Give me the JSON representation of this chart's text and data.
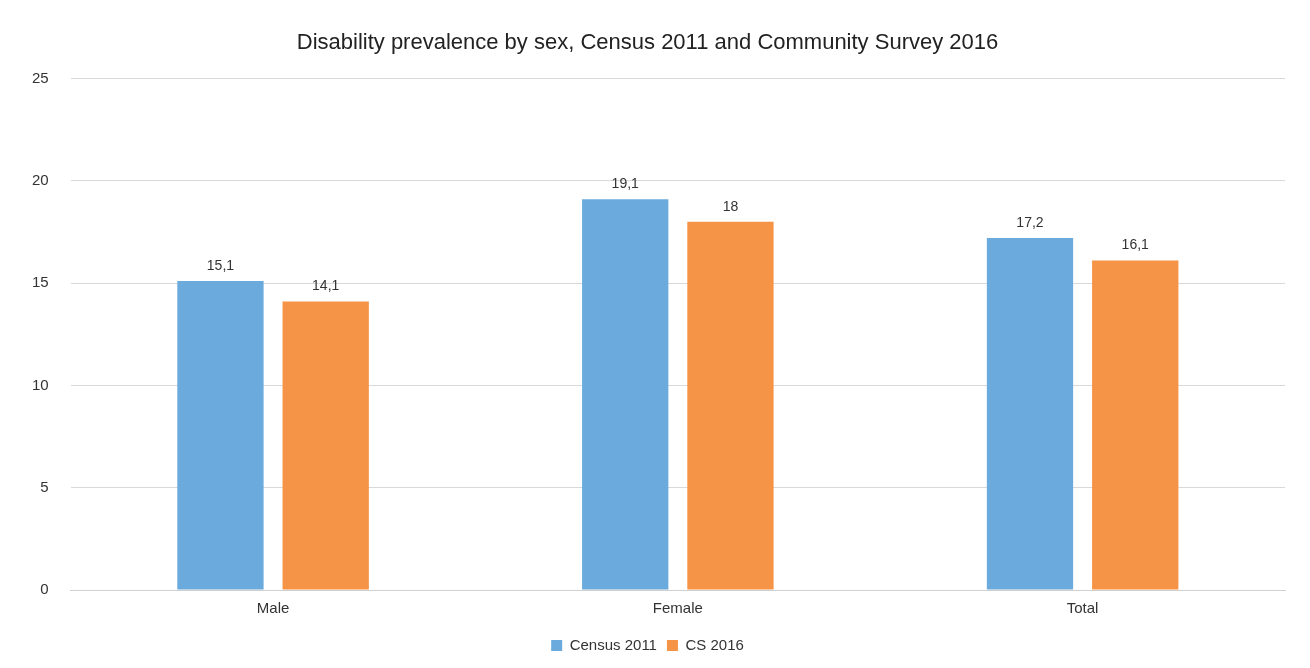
{
  "chart_data": {
    "type": "bar",
    "title": "Disability prevalence by sex, Census 2011 and Community Survey 2016",
    "categories": [
      "Male",
      "Female",
      "Total"
    ],
    "series": [
      {
        "name": "Census 2011",
        "color": "#6aaadc",
        "values": [
          15.1,
          19.1,
          17.2
        ],
        "value_labels": [
          "15,1",
          "19,1",
          "17,2"
        ]
      },
      {
        "name": "CS 2016",
        "color": "#f59346",
        "values": [
          14.1,
          18,
          16.1
        ],
        "value_labels": [
          "14,1",
          "18",
          "16,1"
        ]
      }
    ],
    "ylim": [
      0,
      25
    ],
    "yticks": [
      0,
      5,
      10,
      15,
      20,
      25
    ],
    "grid": "y",
    "legend": "bottom"
  }
}
